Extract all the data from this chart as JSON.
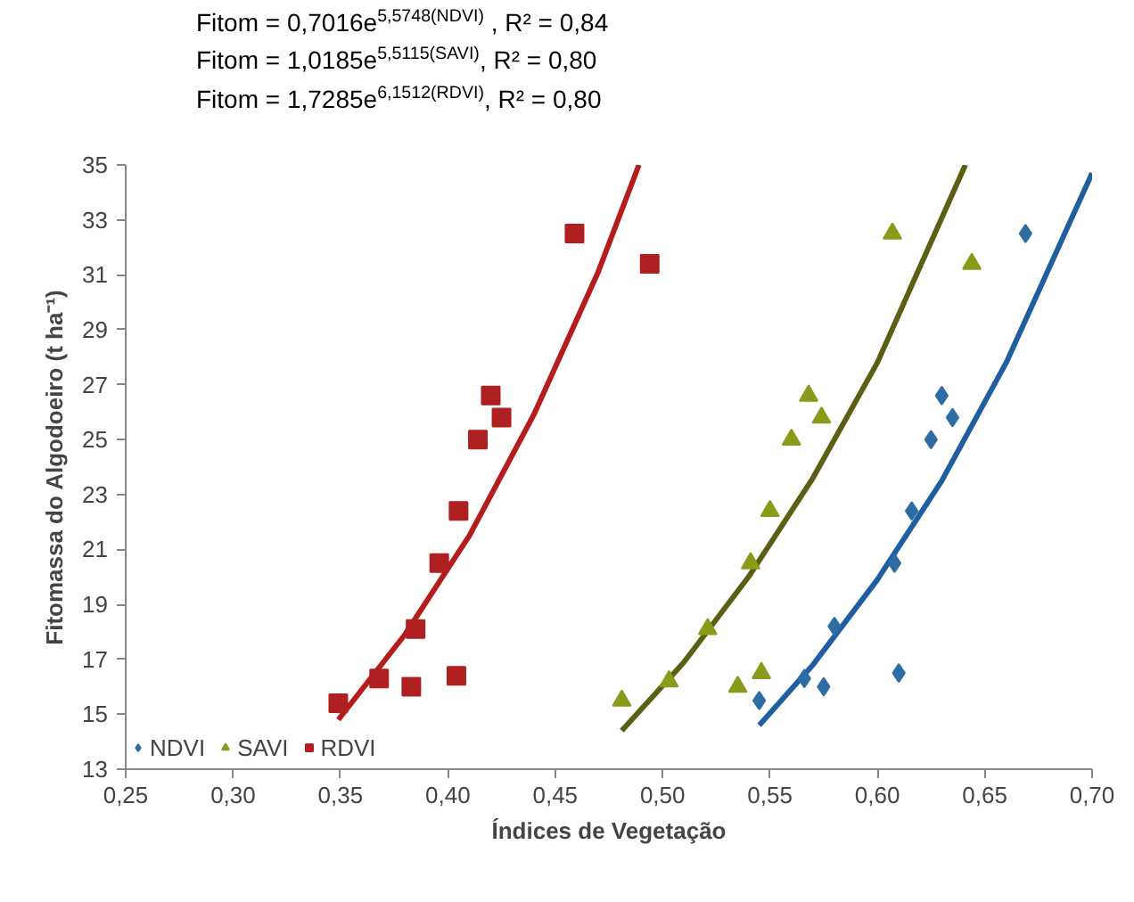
{
  "chart_data": {
    "type": "scatter",
    "xlabel": "Índices de Vegetação",
    "ylabel": "Fitomassa do Algodoeiro (t ha⁻¹)",
    "annotations": [
      "Fitom = 0,7016e$^{5,5748(NDVI)}$ ,  R² = 0,84",
      "Fitom = 1,0185e$^{5,5115(SAVI)}$,  R² = 0,80",
      "Fitom = 1,7285e$^{6,1512(RDVI)}$,  R² = 0,80"
    ],
    "xlim": [
      0.25,
      0.7
    ],
    "xticks": [
      {
        "value": 0.25,
        "label": "0,25"
      },
      {
        "value": 0.3,
        "label": "0,30"
      },
      {
        "value": 0.35,
        "label": "0,35"
      },
      {
        "value": 0.4,
        "label": "0,40"
      },
      {
        "value": 0.45,
        "label": "0,45"
      },
      {
        "value": 0.5,
        "label": "0,50"
      },
      {
        "value": 0.55,
        "label": "0,55"
      },
      {
        "value": 0.6,
        "label": "0,60"
      },
      {
        "value": 0.65,
        "label": "0,65"
      },
      {
        "value": 0.7,
        "label": "0,70"
      }
    ],
    "ylim": [
      13,
      35
    ],
    "yticks": [
      13,
      15,
      17,
      19,
      21,
      23,
      25,
      27,
      29,
      31,
      33,
      35
    ],
    "grid": false,
    "legend": "bottom left",
    "series": [
      {
        "name": "NDVI",
        "color": "#2e6ca4",
        "marker": "diamond",
        "x": [
          0.545,
          0.566,
          0.575,
          0.58,
          0.61,
          0.608,
          0.616,
          0.625,
          0.63,
          0.635,
          0.669
        ],
        "values": [
          15.5,
          16.3,
          16.0,
          18.2,
          16.5,
          20.5,
          22.4,
          25.0,
          26.6,
          25.8,
          32.5
        ]
      },
      {
        "name": "SAVI",
        "color": "#8a9a1a",
        "marker": "triangle",
        "x": [
          0.481,
          0.503,
          0.521,
          0.535,
          0.546,
          0.541,
          0.55,
          0.56,
          0.568,
          0.574,
          0.607,
          0.644
        ],
        "values": [
          15.5,
          16.2,
          18.1,
          16.0,
          16.5,
          20.5,
          22.4,
          25.0,
          26.6,
          25.8,
          32.5,
          31.4
        ]
      },
      {
        "name": "RDVI",
        "color": "#b02020",
        "marker": "square",
        "x": [
          0.349,
          0.368,
          0.383,
          0.385,
          0.404,
          0.396,
          0.405,
          0.414,
          0.42,
          0.425,
          0.459,
          0.494
        ],
        "values": [
          15.4,
          16.3,
          16.0,
          18.1,
          16.4,
          20.5,
          22.4,
          25.0,
          26.6,
          25.8,
          32.5,
          31.4
        ]
      },
      {
        "type": "line",
        "color": "#1f5fa0",
        "x": [
          0.545,
          0.57,
          0.6,
          0.63,
          0.66,
          0.7
        ],
        "values": [
          14.6,
          16.8,
          19.9,
          23.5,
          27.8,
          34.7
        ]
      },
      {
        "type": "line",
        "color": "#5b5e13",
        "x": [
          0.481,
          0.51,
          0.54,
          0.57,
          0.6,
          0.641
        ],
        "values": [
          14.4,
          16.9,
          20.0,
          23.6,
          27.8,
          35.0
        ]
      },
      {
        "type": "line",
        "color": "#b51c1c",
        "x": [
          0.349,
          0.38,
          0.41,
          0.44,
          0.47,
          0.489
        ],
        "values": [
          14.8,
          17.9,
          21.5,
          25.9,
          31.1,
          35.0
        ]
      }
    ]
  }
}
